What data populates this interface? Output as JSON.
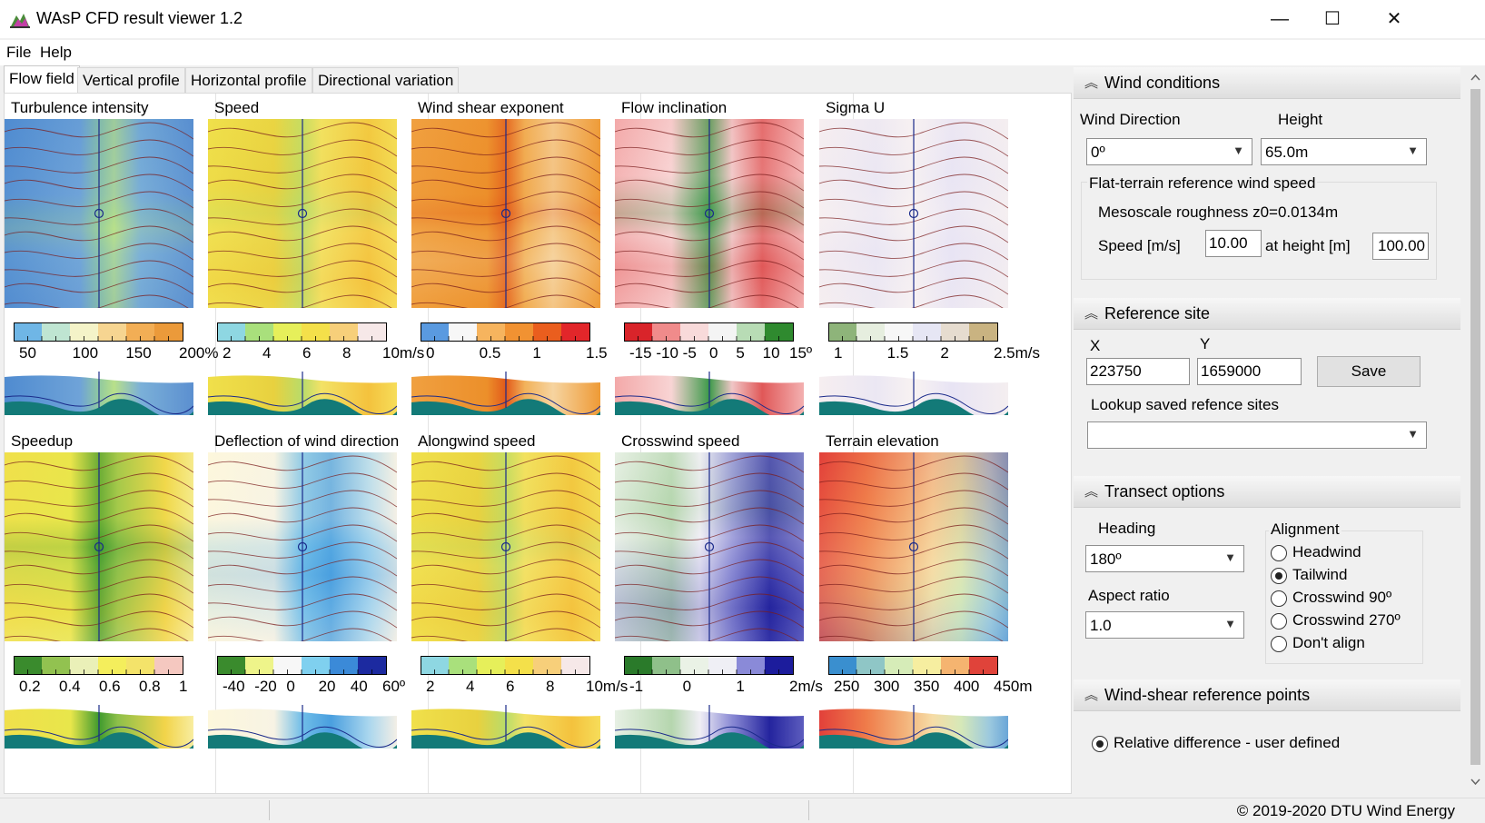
{
  "window": {
    "title": "WAsP CFD result viewer 1.2",
    "minimize_glyph": "—",
    "maximize_glyph": "☐",
    "close_glyph": "✕"
  },
  "menu": [
    "File",
    "Help"
  ],
  "tabs": [
    "Flow field",
    "Vertical profile",
    "Horizontal profile",
    "Directional variation"
  ],
  "plots": [
    {
      "title": "Turbulence intensity",
      "scheme": "ti",
      "ticks": [
        "50",
        "100",
        "150",
        "200%"
      ]
    },
    {
      "title": "Speed",
      "scheme": "speed",
      "ticks": [
        "2",
        "4",
        "6",
        "8",
        "10m/s"
      ]
    },
    {
      "title": "Wind shear exponent",
      "scheme": "shear",
      "ticks": [
        "0",
        "0.5",
        "1",
        "1.5"
      ]
    },
    {
      "title": "Flow inclination",
      "scheme": "incl",
      "ticks": [
        "-15",
        "-10",
        "-5",
        "0",
        "5",
        "10",
        "15º"
      ]
    },
    {
      "title": "Sigma U",
      "scheme": "sigma",
      "ticks": [
        "1",
        "1.5",
        "2",
        "2.5m/s"
      ]
    },
    {
      "title": "Speedup",
      "scheme": "speedup",
      "ticks": [
        "0.2",
        "0.4",
        "0.6",
        "0.8",
        "1"
      ]
    },
    {
      "title": "Deflection of wind direction",
      "scheme": "defl",
      "ticks": [
        "-40",
        "-20",
        "0",
        "20",
        "40",
        "60º"
      ]
    },
    {
      "title": "Alongwind speed",
      "scheme": "speed",
      "ticks": [
        "2",
        "4",
        "6",
        "8",
        "10m/s"
      ]
    },
    {
      "title": "Crosswind speed",
      "scheme": "cross",
      "ticks": [
        "-1",
        "0",
        "1",
        "2m/s"
      ]
    },
    {
      "title": "Terrain elevation",
      "scheme": "elev",
      "ticks": [
        "250",
        "300",
        "350",
        "400",
        "450m"
      ]
    }
  ],
  "wind_conditions": {
    "header": "Wind conditions",
    "direction_label": "Wind Direction",
    "direction_value": "0º",
    "height_label": "Height",
    "height_value": "65.0m",
    "flat_terrain_label": "Flat-terrain reference wind speed",
    "roughness_text": "Mesoscale roughness z0=0.0134m",
    "speed_label": "Speed [m/s]",
    "speed_value": "10.00",
    "at_height_label": "at height [m]",
    "at_height_value": "100.00"
  },
  "reference_site": {
    "header": "Reference site",
    "x_label": "X",
    "x_value": "223750",
    "y_label": "Y",
    "y_value": "1659000",
    "save_label": "Save",
    "lookup_label": "Lookup saved refence sites",
    "lookup_value": ""
  },
  "transect": {
    "header": "Transect options",
    "heading_label": "Heading",
    "heading_value": "180º",
    "aspect_label": "Aspect ratio",
    "aspect_value": "1.0",
    "alignment_label": "Alignment",
    "alignment_options": [
      "Headwind",
      "Tailwind",
      "Crosswind 90º",
      "Crosswind 270º",
      "Don't align"
    ],
    "alignment_selected": "Tailwind"
  },
  "wind_shear": {
    "header": "Wind-shear reference points",
    "option_label": "Relative difference - user defined"
  },
  "status": {
    "copyright": "© 2019-2020 DTU Wind Energy"
  }
}
